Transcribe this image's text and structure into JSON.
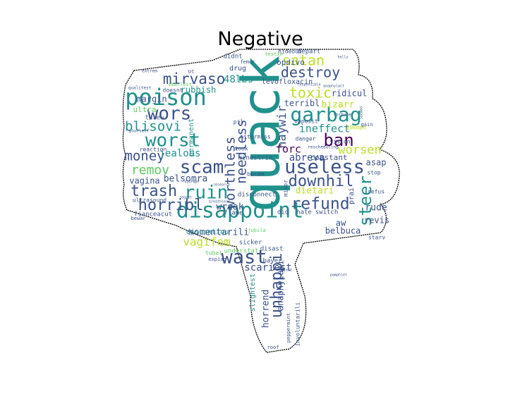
{
  "title": "Negative",
  "palette": [
    "#440154",
    "#3b528b",
    "#21918c",
    "#5ec962",
    "#fde725"
  ],
  "words": [
    {
      "text": "quack",
      "color": "#21918c"
    },
    {
      "text": "disappoint",
      "color": "#21918c"
    },
    {
      "text": "poison",
      "color": "#21918c"
    },
    {
      "text": "garbag",
      "color": "#21918c"
    },
    {
      "text": "wors",
      "color": "#3b528b"
    },
    {
      "text": "scam",
      "color": "#3b528b"
    },
    {
      "text": "useless",
      "color": "#3b528b"
    },
    {
      "text": "wast",
      "color": "#3b528b"
    },
    {
      "text": "ruin",
      "color": "#21918c"
    },
    {
      "text": "worst",
      "color": "#21918c"
    },
    {
      "text": "trash",
      "color": "#3b528b"
    },
    {
      "text": "horribl",
      "color": "#3b528b"
    },
    {
      "text": "refund",
      "color": "#3b528b"
    },
    {
      "text": "unhappi",
      "color": "#3b528b"
    },
    {
      "text": "ban",
      "color": "#440154"
    },
    {
      "text": "downhil",
      "color": "#3b528b"
    },
    {
      "text": "steer",
      "color": "#21918c"
    },
    {
      "text": "satan",
      "color": "#bddf26"
    },
    {
      "text": "destroy",
      "color": "#3b528b"
    },
    {
      "text": "mirvaso",
      "color": "#3b528b"
    },
    {
      "text": "toxic",
      "color": "#bddf26"
    },
    {
      "text": "worthless",
      "color": "#3b528b"
    },
    {
      "text": "needless",
      "color": "#3b528b"
    },
    {
      "text": "blisovi",
      "color": "#21918c"
    },
    {
      "text": "money",
      "color": "#3b528b"
    },
    {
      "text": "remov",
      "color": "#5ec962"
    },
    {
      "text": "worsen",
      "color": "#bddf26"
    },
    {
      "text": "haywir",
      "color": "#3b528b"
    },
    {
      "text": "vagifem",
      "color": "#bddf26"
    },
    {
      "text": "ineffect",
      "color": "#21918c"
    },
    {
      "text": "jealous",
      "color": "#21918c"
    },
    {
      "text": "rubbish",
      "color": "#21918c"
    },
    {
      "text": "48lbs",
      "color": "#21918c"
    },
    {
      "text": "margin",
      "color": "#3b528b"
    },
    {
      "text": "belsomra",
      "color": "#3b528b"
    },
    {
      "text": "vagina",
      "color": "#3b528b"
    },
    {
      "text": "wreak",
      "color": "#3b528b"
    },
    {
      "text": "momentarili",
      "color": "#3b528b"
    },
    {
      "text": "belbuca",
      "color": "#3b528b"
    },
    {
      "text": "scariest",
      "color": "#3b528b"
    },
    {
      "text": "anaphylaxi",
      "color": "#3b528b"
    },
    {
      "text": "horrend",
      "color": "#3b528b"
    },
    {
      "text": "abreva",
      "color": "#3b528b"
    },
    {
      "text": "forc",
      "color": "#440154"
    },
    {
      "text": "ridicul",
      "color": "#3b528b"
    },
    {
      "text": "terribl",
      "color": "#3b528b"
    },
    {
      "text": "bizarr",
      "color": "#bddf26"
    },
    {
      "text": "dietari",
      "color": "#bddf26"
    },
    {
      "text": "rude",
      "color": "#3b528b"
    },
    {
      "text": "revis",
      "color": "#3b528b"
    },
    {
      "text": "aw",
      "color": "#3b528b"
    },
    {
      "text": "constant",
      "color": "#3b528b"
    },
    {
      "text": "asap",
      "color": "#3b528b"
    },
    {
      "text": "opdivo",
      "color": "#3b528b"
    },
    {
      "text": "levofloxacin",
      "color": "#3b528b"
    },
    {
      "text": "drug",
      "color": "#3b528b"
    },
    {
      "text": "didnt",
      "color": "#3b528b"
    },
    {
      "text": "depart",
      "color": "#3b528b"
    },
    {
      "text": "hideous",
      "color": "#3b528b"
    },
    {
      "text": "ultra",
      "color": "#5ec962"
    },
    {
      "text": "uc",
      "color": "#3b528b"
    },
    {
      "text": "threw",
      "color": "#3b528b"
    },
    {
      "text": "permanent",
      "color": "#21918c"
    },
    {
      "text": "disconnect",
      "color": "#3b528b"
    },
    {
      "text": "discontinu",
      "color": "#21918c"
    },
    {
      "text": "understat",
      "color": "#5ec962"
    },
    {
      "text": "sicker",
      "color": "#3b528b"
    },
    {
      "text": "bayer",
      "color": "#3b528b"
    },
    {
      "text": "disast",
      "color": "#3b528b"
    },
    {
      "text": "slightest",
      "color": "#21918c"
    },
    {
      "text": "fianceacut",
      "color": "#3b528b"
    },
    {
      "text": "flame",
      "color": "#3b528b"
    },
    {
      "text": "hate",
      "color": "#3b528b"
    },
    {
      "text": "switch",
      "color": "#3b528b"
    },
    {
      "text": "did",
      "color": "#3b528b"
    },
    {
      "text": "starv",
      "color": "#3b528b"
    },
    {
      "text": "stop",
      "color": "#3b528b"
    },
    {
      "text": "refus",
      "color": "#3b528b"
    },
    {
      "text": "vision",
      "color": "#3b528b"
    },
    {
      "text": "danger",
      "color": "#3b528b"
    },
    {
      "text": "opposit",
      "color": "#3b528b"
    },
    {
      "text": "took",
      "color": "#3b528b"
    },
    {
      "text": "pil",
      "color": "#3b528b"
    },
    {
      "text": "hitormiss",
      "color": "#3b528b"
    },
    {
      "text": "minestrin",
      "color": "#3b528b"
    },
    {
      "text": "becam",
      "color": "#3b528b"
    },
    {
      "text": "miser",
      "color": "#3b528b"
    },
    {
      "text": "reaction",
      "color": "#3b528b"
    },
    {
      "text": "ultrasound",
      "color": "#3b528b"
    },
    {
      "text": "doesnt",
      "color": "#3b528b"
    },
    {
      "text": "smallest",
      "color": "#5ec962"
    },
    {
      "text": "femur",
      "color": "#3b528b"
    },
    {
      "text": "testin",
      "color": "#5ec962"
    },
    {
      "text": "tubal",
      "color": "#5ec962"
    },
    {
      "text": "expian",
      "color": "#3b528b"
    },
    {
      "text": "bewar",
      "color": "#3b528b"
    },
    {
      "text": "involuntarili",
      "color": "#3b528b"
    },
    {
      "text": "peppermint",
      "color": "#3b528b"
    },
    {
      "text": "roof",
      "color": "#3b528b"
    },
    {
      "text": "100mph",
      "color": "#bddf26"
    },
    {
      "text": "rescheduling",
      "color": "#3b528b"
    },
    {
      "text": "torture",
      "color": "#3b528b"
    },
    {
      "text": "gain",
      "color": "#3b528b"
    },
    {
      "text": "extrem",
      "color": "#3b528b"
    },
    {
      "text": "qualitest",
      "color": "#3b528b"
    },
    {
      "text": "yourself",
      "color": "#3b528b"
    },
    {
      "text": "research",
      "color": "#3b528b"
    },
    {
      "text": "disrupt",
      "color": "#3b528b"
    },
    {
      "text": "regret",
      "color": "#3b528b"
    },
    {
      "text": "breathless",
      "color": "#3b528b"
    },
    {
      "text": "reject",
      "color": "#3b528b"
    },
    {
      "text": "pamphlet",
      "color": "#3b528b"
    },
    {
      "text": "responsible",
      "color": "#3b528b"
    },
    {
      "text": "anaphylact",
      "color": "#3b528b"
    },
    {
      "text": "jubila",
      "color": "#5ec962"
    },
    {
      "text": "helly",
      "color": "#3b528b"
    },
    {
      "text": "seemed",
      "color": "#3b528b"
    },
    {
      "text": "prai",
      "color": "#3b528b"
    }
  ]
}
